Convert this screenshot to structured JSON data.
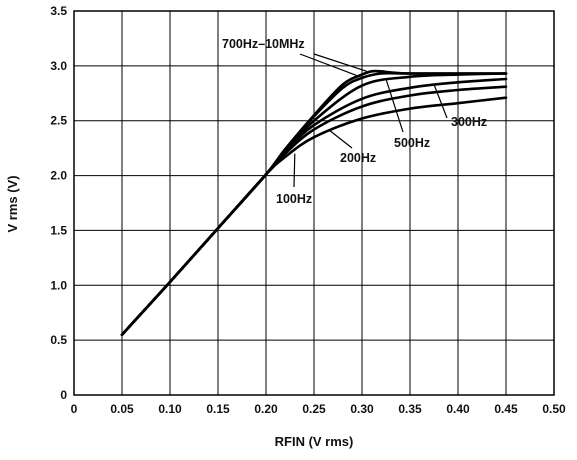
{
  "chart_data": {
    "type": "line",
    "xlabel": "RFIN (V rms)",
    "ylabel": "V rms (V)",
    "xlim": [
      0,
      0.5
    ],
    "ylim": [
      0,
      3.5
    ],
    "xticks": [
      "0",
      "0.05",
      "0.10",
      "0.15",
      "0.20",
      "0.25",
      "0.30",
      "0.35",
      "0.40",
      "0.45",
      "0.50"
    ],
    "yticks": [
      "0",
      "0.5",
      "1.0",
      "1.5",
      "2.0",
      "2.5",
      "3.0",
      "3.5"
    ],
    "grid": true,
    "annotations": [
      "700Hz–10MHz",
      "500Hz",
      "300Hz",
      "200Hz",
      "100Hz"
    ],
    "series": [
      {
        "label_ref": "100Hz",
        "x": [
          0.05,
          0.1,
          0.15,
          0.2,
          0.22,
          0.25,
          0.3,
          0.35,
          0.4,
          0.45
        ],
        "y": [
          0.55,
          1.03,
          1.52,
          2.01,
          2.17,
          2.35,
          2.52,
          2.61,
          2.66,
          2.71
        ]
      },
      {
        "label_ref": "200Hz",
        "x": [
          0.05,
          0.1,
          0.15,
          0.2,
          0.22,
          0.25,
          0.3,
          0.35,
          0.4,
          0.45
        ],
        "y": [
          0.55,
          1.03,
          1.52,
          2.01,
          2.2,
          2.42,
          2.63,
          2.73,
          2.78,
          2.81
        ]
      },
      {
        "label_ref": "300Hz",
        "x": [
          0.05,
          0.1,
          0.15,
          0.2,
          0.22,
          0.25,
          0.3,
          0.35,
          0.4,
          0.45
        ],
        "y": [
          0.55,
          1.03,
          1.52,
          2.01,
          2.22,
          2.46,
          2.7,
          2.8,
          2.85,
          2.88
        ]
      },
      {
        "label_ref": "500Hz",
        "x": [
          0.05,
          0.1,
          0.15,
          0.2,
          0.22,
          0.25,
          0.3,
          0.35,
          0.4,
          0.45
        ],
        "y": [
          0.55,
          1.03,
          1.52,
          2.01,
          2.23,
          2.5,
          2.82,
          2.9,
          2.92,
          2.93
        ]
      },
      {
        "label_ref": "700Hz–10MHz",
        "x": [
          0.05,
          0.1,
          0.15,
          0.2,
          0.22,
          0.25,
          0.28,
          0.3,
          0.31,
          0.32,
          0.33,
          0.35,
          0.4,
          0.45
        ],
        "y": [
          0.55,
          1.03,
          1.52,
          2.01,
          2.24,
          2.55,
          2.83,
          2.92,
          2.95,
          2.95,
          2.94,
          2.93,
          2.93,
          2.93
        ]
      },
      {
        "label_ref": "700Hz–10MHz",
        "x": [
          0.05,
          0.1,
          0.15,
          0.2,
          0.22,
          0.25,
          0.28,
          0.3,
          0.32,
          0.35,
          0.4,
          0.45
        ],
        "y": [
          0.55,
          1.03,
          1.52,
          2.01,
          2.24,
          2.54,
          2.8,
          2.89,
          2.93,
          2.93,
          2.93,
          2.93
        ]
      }
    ]
  }
}
